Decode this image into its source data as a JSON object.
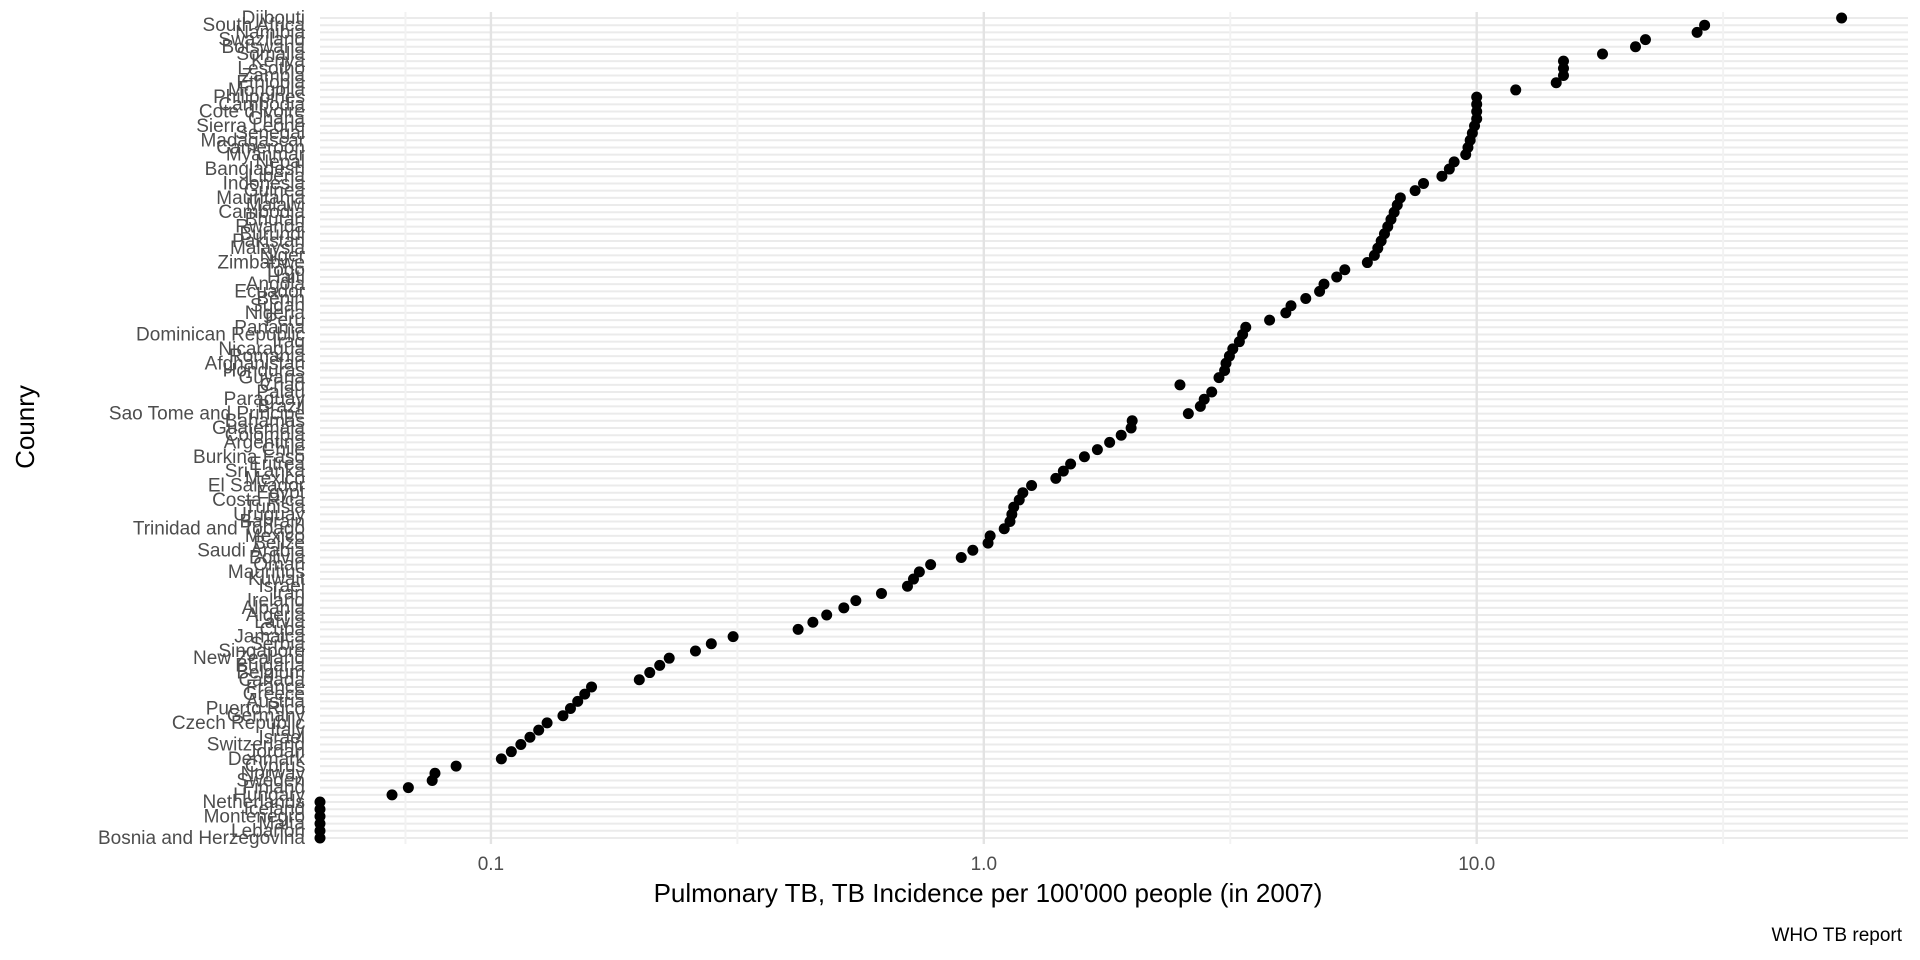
{
  "chart_data": {
    "type": "scatter",
    "xlabel": "Pulmonary TB, TB Incidence per 100'000 people (in 2007)",
    "ylabel": "Counry",
    "caption": "WHO TB report",
    "x_scale": "log10",
    "xlim": [
      0.045,
      75
    ],
    "x_ticks": [
      0.1,
      1.0,
      10.0
    ],
    "x_tick_labels": [
      "0.1",
      "1.0",
      "10.0"
    ],
    "grid": true,
    "point_color": "#000000",
    "categories": [
      "Djibouti",
      "South Africa",
      "Namibia",
      "Swaziland",
      "Botswana",
      "Somalia",
      "Kenya",
      "Lesotho",
      "Zambia",
      "Ethiopia",
      "Mongolia",
      "Philippines",
      "Cambodia",
      "Cote d'Ivoire",
      "Ghana",
      "Sierra Leone",
      "Senegal",
      "Madagascar",
      "Cameroon",
      "Myanmar",
      "Nepal",
      "Bangladesh",
      "Liberia",
      "Indonesia",
      "Guinea",
      "Mauritania",
      "Malawi",
      "Cambodia",
      "Bhutan",
      "Rwanda",
      "Burundi",
      "Pakistan",
      "Malaysia",
      "Niger",
      "Zimbabwe",
      "Togo",
      "Haiti",
      "Angola",
      "Ecuador",
      "Benin",
      "Sudan",
      "Nigeria",
      "Peru",
      "Panama",
      "Dominican Republic",
      "Iraq",
      "Nicaragua",
      "Romania",
      "Afghanistan",
      "Honduras",
      "Guyana",
      "Chad",
      "Palau",
      "Paraguay",
      "Brazil",
      "Sao Tome and Principe",
      "Bahamas",
      "Guatemala",
      "Colombia",
      "Argentina",
      "Chile",
      "Burkina Faso",
      "Eritrea",
      "Sri Lanka",
      "Mexico",
      "El Salvador",
      "Egypt",
      "Costa Rica",
      "Tunisia",
      "Uruguay",
      "Bahrain",
      "Trinidad and Tobago",
      "Mexico",
      "Belize",
      "Saudi Arabia",
      "Bolivia",
      "Oman",
      "Mauritius",
      "Kuwait",
      "Israel",
      "Iran",
      "Ireland",
      "Albania",
      "Algeria",
      "Latvia",
      "Cuba",
      "Jamaica",
      "Serbia",
      "Singapore",
      "New Zealand",
      "Bulgaria",
      "Belgium",
      "Canada",
      "France",
      "Greece",
      "Austria",
      "Puerto Rico",
      "Germany",
      "Czech Republic",
      "Italy",
      "Israel",
      "Switzerland",
      "Jordan",
      "Denmark",
      "Cyprus",
      "Norway",
      "Sweden",
      "Finland",
      "Hungary",
      "Netherlands",
      "Iceland",
      "Montenegro",
      "Malta",
      "Lebanon",
      "Bosnia and Herzegovina"
    ],
    "values": [
      55,
      29,
      28,
      22,
      21,
      18,
      15,
      15,
      15,
      14.5,
      12,
      10,
      10,
      10,
      10,
      9.9,
      9.8,
      9.7,
      9.6,
      9.5,
      9,
      8.8,
      8.5,
      7.8,
      7.5,
      7,
      6.9,
      6.8,
      6.7,
      6.6,
      6.5,
      6.4,
      6.3,
      6.2,
      6.0,
      5.4,
      5.2,
      4.9,
      4.8,
      4.5,
      4.2,
      4.1,
      3.8,
      3.4,
      3.35,
      3.3,
      3.2,
      3.15,
      3.1,
      3.08,
      3.0,
      2.5,
      2.9,
      2.8,
      2.75,
      2.6,
      2.0,
      1.99,
      1.9,
      1.8,
      1.7,
      1.6,
      1.5,
      1.45,
      1.4,
      1.25,
      1.2,
      1.18,
      1.15,
      1.14,
      1.13,
      1.1,
      1.03,
      1.02,
      0.95,
      0.9,
      0.78,
      0.74,
      0.72,
      0.7,
      0.62,
      0.55,
      0.52,
      0.48,
      0.45,
      0.42,
      0.31,
      0.28,
      0.26,
      0.23,
      0.22,
      0.21,
      0.2,
      0.16,
      0.155,
      0.15,
      0.145,
      0.14,
      0.13,
      0.125,
      0.12,
      0.115,
      0.11,
      0.105,
      0.085,
      0.077,
      0.076,
      0.068,
      0.063,
      0.045,
      0.045,
      0.045,
      0.045,
      0.045,
      0.045
    ]
  }
}
